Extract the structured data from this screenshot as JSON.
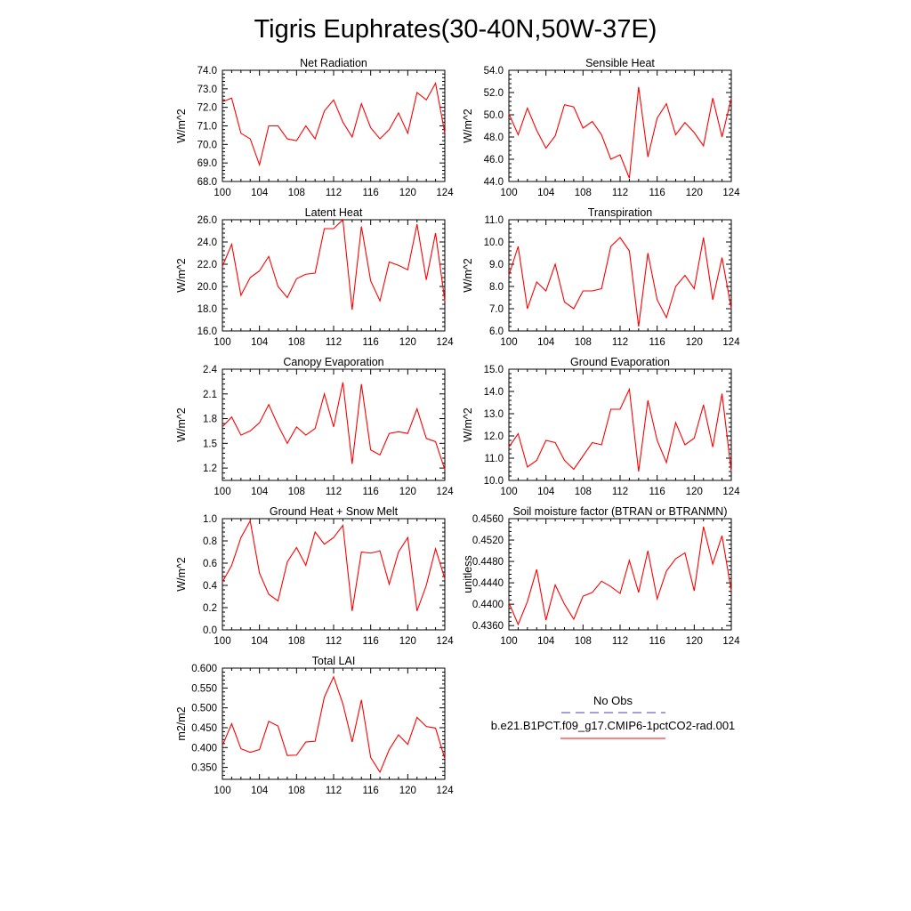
{
  "title": "Tigris Euphrates(30-40N,50W-37E)",
  "colors": {
    "model": "#ff0000",
    "obs": "#4040c0",
    "axis": "#000000"
  },
  "legend": {
    "obs_label": "No Obs",
    "model_label": "b.e21.B1PCT.f09_g17.CMIP6-1pctCO2-rad.001"
  },
  "chart_data": [
    {
      "type": "line",
      "title": "Net Radiation",
      "ylabel": "W/m^2",
      "xlim": [
        100,
        124
      ],
      "ylim": [
        68,
        74
      ],
      "xticks": [
        100,
        104,
        108,
        112,
        116,
        120,
        124
      ],
      "yticks": [
        68,
        69,
        70,
        71,
        72,
        73,
        74
      ],
      "ytick_decimals": 1,
      "x": [
        100,
        101,
        102,
        103,
        104,
        105,
        106,
        107,
        108,
        109,
        110,
        111,
        112,
        113,
        114,
        115,
        116,
        117,
        118,
        119,
        120,
        121,
        122,
        123,
        124
      ],
      "series": [
        {
          "values": [
            72.3,
            72.5,
            70.6,
            70.3,
            68.9,
            71.0,
            71.0,
            70.3,
            70.2,
            71.0,
            70.3,
            71.8,
            72.4,
            71.2,
            70.4,
            72.2,
            70.9,
            70.3,
            70.8,
            71.7,
            70.6,
            72.8,
            72.4,
            73.3,
            70.6
          ]
        }
      ]
    },
    {
      "type": "line",
      "title": "Sensible Heat",
      "ylabel": "W/m^2",
      "xlim": [
        100,
        124
      ],
      "ylim": [
        44,
        54
      ],
      "xticks": [
        100,
        104,
        108,
        112,
        116,
        120,
        124
      ],
      "yticks": [
        44,
        46,
        48,
        50,
        52,
        54
      ],
      "ytick_decimals": 1,
      "x": [
        100,
        101,
        102,
        103,
        104,
        105,
        106,
        107,
        108,
        109,
        110,
        111,
        112,
        113,
        114,
        115,
        116,
        117,
        118,
        119,
        120,
        121,
        122,
        123,
        124
      ],
      "series": [
        {
          "values": [
            50.1,
            48.2,
            50.6,
            48.6,
            47.0,
            48.1,
            50.9,
            50.7,
            48.8,
            49.4,
            48.2,
            46.0,
            46.4,
            44.3,
            52.5,
            46.2,
            49.7,
            51.0,
            48.2,
            49.3,
            48.4,
            47.2,
            51.5,
            48.0,
            51.5
          ]
        }
      ]
    },
    {
      "type": "line",
      "title": "Latent Heat",
      "ylabel": "W/m^2",
      "xlim": [
        100,
        124
      ],
      "ylim": [
        16,
        26
      ],
      "xticks": [
        100,
        104,
        108,
        112,
        116,
        120,
        124
      ],
      "yticks": [
        16,
        18,
        20,
        22,
        24,
        26
      ],
      "ytick_decimals": 1,
      "x": [
        100,
        101,
        102,
        103,
        104,
        105,
        106,
        107,
        108,
        109,
        110,
        111,
        112,
        113,
        114,
        115,
        116,
        117,
        118,
        119,
        120,
        121,
        122,
        123,
        124
      ],
      "series": [
        {
          "values": [
            21.8,
            23.8,
            19.2,
            20.8,
            21.4,
            22.7,
            20.0,
            19.0,
            20.7,
            21.1,
            21.2,
            25.2,
            25.2,
            26.0,
            17.9,
            25.4,
            20.5,
            18.7,
            22.2,
            21.9,
            21.5,
            25.6,
            20.6,
            24.8,
            18.7
          ]
        }
      ]
    },
    {
      "type": "line",
      "title": "Transpiration",
      "ylabel": "W/m^2",
      "xlim": [
        100,
        124
      ],
      "ylim": [
        6,
        11
      ],
      "xticks": [
        100,
        104,
        108,
        112,
        116,
        120,
        124
      ],
      "yticks": [
        6,
        7,
        8,
        9,
        10,
        11
      ],
      "ytick_decimals": 1,
      "x": [
        100,
        101,
        102,
        103,
        104,
        105,
        106,
        107,
        108,
        109,
        110,
        111,
        112,
        113,
        114,
        115,
        116,
        117,
        118,
        119,
        120,
        121,
        122,
        123,
        124
      ],
      "series": [
        {
          "values": [
            8.5,
            9.8,
            7.0,
            8.2,
            7.8,
            9.0,
            7.3,
            7.0,
            7.8,
            7.8,
            7.9,
            9.8,
            10.2,
            9.6,
            6.2,
            9.5,
            7.4,
            6.6,
            8.0,
            8.5,
            7.9,
            10.2,
            7.4,
            9.3,
            7.0
          ]
        }
      ]
    },
    {
      "type": "line",
      "title": "Canopy Evaporation",
      "ylabel": "W/m^2",
      "xlim": [
        100,
        124
      ],
      "ylim": [
        1.05,
        2.4
      ],
      "xticks": [
        100,
        104,
        108,
        112,
        116,
        120,
        124
      ],
      "yticks": [
        1.2,
        1.5,
        1.8,
        2.1,
        2.4
      ],
      "ytick_decimals": 1,
      "x": [
        100,
        101,
        102,
        103,
        104,
        105,
        106,
        107,
        108,
        109,
        110,
        111,
        112,
        113,
        114,
        115,
        116,
        117,
        118,
        119,
        120,
        121,
        122,
        123,
        124
      ],
      "series": [
        {
          "values": [
            1.7,
            1.82,
            1.6,
            1.65,
            1.75,
            1.97,
            1.72,
            1.5,
            1.7,
            1.6,
            1.68,
            2.1,
            1.7,
            2.24,
            1.25,
            2.22,
            1.42,
            1.36,
            1.62,
            1.64,
            1.62,
            1.92,
            1.56,
            1.52,
            1.18
          ]
        }
      ]
    },
    {
      "type": "line",
      "title": "Ground Evaporation",
      "ylabel": "W/m^2",
      "xlim": [
        100,
        124
      ],
      "ylim": [
        10,
        15
      ],
      "xticks": [
        100,
        104,
        108,
        112,
        116,
        120,
        124
      ],
      "yticks": [
        10,
        11,
        12,
        13,
        14,
        15
      ],
      "ytick_decimals": 1,
      "x": [
        100,
        101,
        102,
        103,
        104,
        105,
        106,
        107,
        108,
        109,
        110,
        111,
        112,
        113,
        114,
        115,
        116,
        117,
        118,
        119,
        120,
        121,
        122,
        123,
        124
      ],
      "series": [
        {
          "values": [
            11.5,
            12.1,
            10.6,
            10.9,
            11.8,
            11.7,
            10.9,
            10.5,
            11.1,
            11.7,
            11.6,
            13.2,
            13.2,
            14.1,
            10.4,
            13.6,
            11.8,
            10.8,
            12.6,
            11.6,
            11.9,
            13.4,
            11.5,
            13.9,
            10.4
          ]
        }
      ]
    },
    {
      "type": "line",
      "title": "Ground Heat + Snow Melt",
      "ylabel": "W/m^2",
      "xlim": [
        100,
        124
      ],
      "ylim": [
        0,
        1
      ],
      "xticks": [
        100,
        104,
        108,
        112,
        116,
        120,
        124
      ],
      "yticks": [
        0,
        0.2,
        0.4,
        0.6,
        0.8,
        1.0
      ],
      "ytick_decimals": 1,
      "x": [
        100,
        101,
        102,
        103,
        104,
        105,
        106,
        107,
        108,
        109,
        110,
        111,
        112,
        113,
        114,
        115,
        116,
        117,
        118,
        119,
        120,
        121,
        122,
        123,
        124
      ],
      "series": [
        {
          "values": [
            0.43,
            0.58,
            0.83,
            0.98,
            0.51,
            0.32,
            0.26,
            0.61,
            0.74,
            0.58,
            0.88,
            0.77,
            0.83,
            0.94,
            0.17,
            0.7,
            0.69,
            0.71,
            0.41,
            0.7,
            0.83,
            0.17,
            0.4,
            0.73,
            0.46
          ]
        }
      ]
    },
    {
      "type": "line",
      "title": "Soil moisture factor (BTRAN or BTRANMN)",
      "ylabel": "unitless",
      "xlim": [
        100,
        124
      ],
      "ylim": [
        0.4352,
        0.456
      ],
      "xticks": [
        100,
        104,
        108,
        112,
        116,
        120,
        124
      ],
      "yticks": [
        0.436,
        0.44,
        0.444,
        0.448,
        0.452,
        0.456
      ],
      "ytick_decimals": 4,
      "x": [
        100,
        101,
        102,
        103,
        104,
        105,
        106,
        107,
        108,
        109,
        110,
        111,
        112,
        113,
        114,
        115,
        116,
        117,
        118,
        119,
        120,
        121,
        122,
        123,
        124
      ],
      "series": [
        {
          "values": [
            0.4403,
            0.4362,
            0.4405,
            0.4465,
            0.437,
            0.4436,
            0.44,
            0.4372,
            0.4415,
            0.4422,
            0.4443,
            0.4433,
            0.442,
            0.4482,
            0.4422,
            0.45,
            0.441,
            0.4462,
            0.4485,
            0.4496,
            0.4425,
            0.4545,
            0.4475,
            0.4528,
            0.4425
          ]
        }
      ]
    },
    {
      "type": "line",
      "title": "Total LAI",
      "ylabel": "m2/m2",
      "xlim": [
        100,
        124
      ],
      "ylim": [
        0.32,
        0.6
      ],
      "xticks": [
        100,
        104,
        108,
        112,
        116,
        120,
        124
      ],
      "yticks": [
        0.35,
        0.4,
        0.45,
        0.5,
        0.55,
        0.6
      ],
      "ytick_decimals": 3,
      "x": [
        100,
        101,
        102,
        103,
        104,
        105,
        106,
        107,
        108,
        109,
        110,
        111,
        112,
        113,
        114,
        115,
        116,
        117,
        118,
        119,
        120,
        121,
        122,
        123,
        124
      ],
      "series": [
        {
          "values": [
            0.405,
            0.46,
            0.397,
            0.388,
            0.395,
            0.466,
            0.454,
            0.38,
            0.381,
            0.414,
            0.416,
            0.527,
            0.578,
            0.51,
            0.414,
            0.52,
            0.375,
            0.338,
            0.395,
            0.432,
            0.408,
            0.476,
            0.453,
            0.449,
            0.372
          ]
        }
      ]
    }
  ]
}
